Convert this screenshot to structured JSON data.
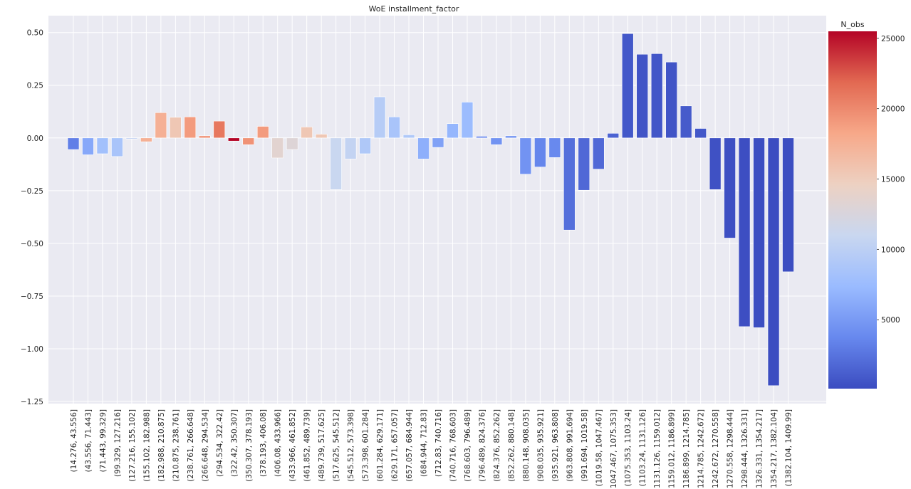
{
  "chart_data": {
    "type": "bar",
    "title": "WoE installment_factor",
    "xlabel": "",
    "ylabel": "",
    "ylim": [
      -1.26,
      0.58
    ],
    "yticks": [
      {
        "value": 0.5,
        "label": "0.50"
      },
      {
        "value": 0.25,
        "label": "0.25"
      },
      {
        "value": 0.0,
        "label": "0.00"
      },
      {
        "value": -0.25,
        "label": "−0.25"
      },
      {
        "value": -0.5,
        "label": "−0.50"
      },
      {
        "value": -0.75,
        "label": "−0.75"
      },
      {
        "value": -1.0,
        "label": "−1.00"
      },
      {
        "value": -1.25,
        "label": "−1.25"
      }
    ],
    "grid": true,
    "categories": [
      "(14.276, 43.556]",
      "(43.556, 71.443]",
      "(71.443, 99.329]",
      "(99.329, 127.216]",
      "(127.216, 155.102]",
      "(155.102, 182.988]",
      "(182.988, 210.875]",
      "(210.875, 238.761]",
      "(238.761, 266.648]",
      "(266.648, 294.534]",
      "(294.534, 322.42]",
      "(322.42, 350.307]",
      "(350.307, 378.193]",
      "(378.193, 406.08]",
      "(406.08, 433.966]",
      "(433.966, 461.852]",
      "(461.852, 489.739]",
      "(489.739, 517.625]",
      "(517.625, 545.512]",
      "(545.512, 573.398]",
      "(573.398, 601.284]",
      "(601.284, 629.171]",
      "(629.171, 657.057]",
      "(657.057, 684.944]",
      "(684.944, 712.83]",
      "(712.83, 740.716]",
      "(740.716, 768.603]",
      "(768.603, 796.489]",
      "(796.489, 824.376]",
      "(824.376, 852.262]",
      "(852.262, 880.148]",
      "(880.148, 908.035]",
      "(908.035, 935.921]",
      "(935.921, 963.808]",
      "(963.808, 991.694]",
      "(991.694, 1019.58]",
      "(1019.58, 1047.467]",
      "(1047.467, 1075.353]",
      "(1075.353, 1103.24]",
      "(1103.24, 1131.126]",
      "(1131.126, 1159.012]",
      "(1159.012, 1186.899]",
      "(1186.899, 1214.785]",
      "(1214.785, 1242.672]",
      "(1242.672, 1270.558]",
      "(1270.558, 1298.444]",
      "(1298.444, 1326.331]",
      "(1326.331, 1354.217]",
      "(1354.217, 1382.104]",
      "(1382.104, 1409.99]"
    ],
    "values": [
      -0.055,
      -0.08,
      -0.075,
      -0.088,
      -0.005,
      -0.018,
      0.12,
      0.098,
      0.1,
      0.01,
      0.08,
      -0.015,
      -0.032,
      0.055,
      -0.095,
      -0.055,
      0.052,
      0.018,
      -0.245,
      -0.1,
      -0.075,
      0.195,
      0.1,
      0.015,
      -0.1,
      -0.045,
      0.068,
      0.17,
      0.008,
      -0.032,
      0.01,
      -0.172,
      -0.138,
      -0.093,
      -0.437,
      -0.248,
      -0.148,
      0.022,
      0.495,
      0.397,
      0.4,
      0.36,
      0.152,
      0.045,
      -0.245,
      -0.475,
      -0.895,
      -0.9,
      -1.175,
      -0.635
    ],
    "n_obs": [
      3200,
      6000,
      8000,
      8500,
      10500,
      17500,
      17500,
      15500,
      19000,
      19500,
      21000,
      25500,
      19500,
      19000,
      13500,
      13000,
      15500,
      15500,
      11000,
      10500,
      9000,
      9500,
      8500,
      9000,
      6500,
      5500,
      7000,
      7500,
      3500,
      4500,
      4500,
      4500,
      3600,
      3800,
      2200,
      1800,
      1800,
      1500,
      800,
      600,
      700,
      600,
      1000,
      800,
      400,
      300,
      250,
      200,
      150,
      200
    ],
    "colorbar": {
      "title": "N_obs",
      "cmap": "coolwarm",
      "range": [
        100,
        25500
      ],
      "ticks": [
        {
          "value": 5000,
          "label": "5000"
        },
        {
          "value": 10000,
          "label": "10000"
        },
        {
          "value": 15000,
          "label": "15000"
        },
        {
          "value": 20000,
          "label": "20000"
        },
        {
          "value": 25000,
          "label": "25000"
        }
      ]
    },
    "colors": {
      "plot_background": "#eaeaf2",
      "grid": "#ffffff",
      "text": "#262626",
      "cmap_stops": [
        "#3b4cc0",
        "#6788ee",
        "#9abbff",
        "#c9d7f0",
        "#edd1c2",
        "#f7a889",
        "#e26952",
        "#b40426"
      ]
    }
  }
}
